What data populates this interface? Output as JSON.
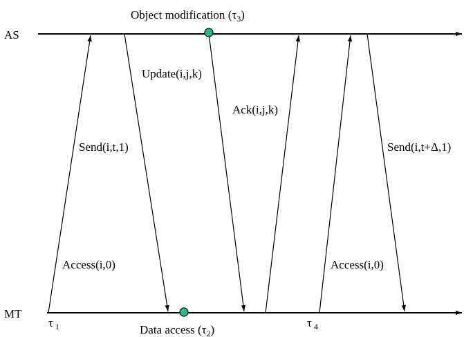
{
  "lines": {
    "top_label": "AS",
    "bottom_label": "MT"
  },
  "events": {
    "top_event": {
      "name": "Object modification",
      "symbol": "τ",
      "subscript": "3"
    },
    "bottom_event": {
      "name": "Data access",
      "symbol": "τ",
      "subscript": "2"
    },
    "tau1": {
      "symbol": "τ",
      "subscript": "1"
    },
    "tau4": {
      "symbol": "τ",
      "subscript": "4"
    }
  },
  "messages": {
    "access_first": "Access(i,0)",
    "send_first": "Send(i,t,1)",
    "update": "Update(i,j,k)",
    "ack": "Ack(i,j,k)",
    "access_second": "Access(i,0)",
    "send_second": "Send(i,t+Δ,1)"
  },
  "colors": {
    "event_dot": "#1fbf8f",
    "line": "#000000"
  }
}
